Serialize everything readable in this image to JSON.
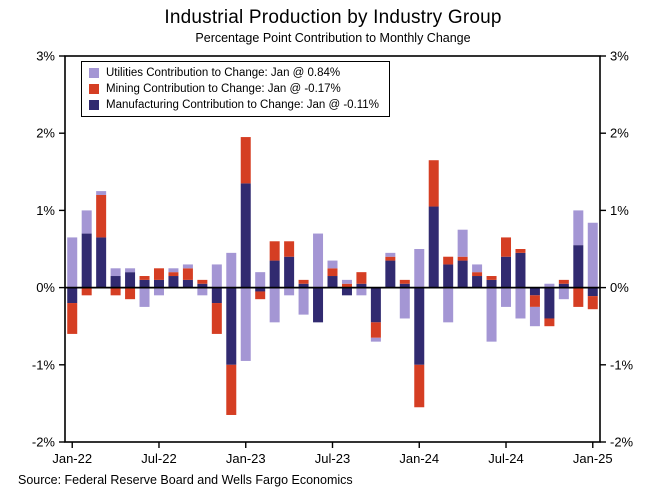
{
  "chart_data": {
    "type": "bar",
    "stacked": true,
    "title": "Industrial Production by Industry Group",
    "subtitle": "Percentage Point Contribution to Monthly Change",
    "source": "Source: Federal Reserve Board and Wells Fargo Economics",
    "ylim": [
      -2,
      3
    ],
    "yticks": [
      3,
      2,
      1,
      0,
      -1,
      -2
    ],
    "ytick_suffix": "%",
    "grid": false,
    "legend_position": "top-left-inside",
    "categories": [
      "Jan-22",
      "Feb-22",
      "Mar-22",
      "Apr-22",
      "May-22",
      "Jun-22",
      "Jul-22",
      "Aug-22",
      "Sep-22",
      "Oct-22",
      "Nov-22",
      "Dec-22",
      "Jan-23",
      "Feb-23",
      "Mar-23",
      "Apr-23",
      "May-23",
      "Jun-23",
      "Jul-23",
      "Aug-23",
      "Sep-23",
      "Oct-23",
      "Nov-23",
      "Dec-23",
      "Jan-24",
      "Feb-24",
      "Mar-24",
      "Apr-24",
      "May-24",
      "Jun-24",
      "Jul-24",
      "Aug-24",
      "Sep-24",
      "Oct-24",
      "Nov-24",
      "Dec-24",
      "Jan-25"
    ],
    "xticks": [
      {
        "i": 0,
        "label": "Jan-22"
      },
      {
        "i": 6,
        "label": "Jul-22"
      },
      {
        "i": 12,
        "label": "Jan-23"
      },
      {
        "i": 18,
        "label": "Jul-23"
      },
      {
        "i": 24,
        "label": "Jan-24"
      },
      {
        "i": 30,
        "label": "Jul-24"
      },
      {
        "i": 36,
        "label": "Jan-25"
      }
    ],
    "series": [
      {
        "id": "utilities",
        "name": "Utilities",
        "legend_label": "Utilities Contribution to Change: Jan @ 0.84%",
        "color": "#a496d4",
        "values": [
          0.65,
          0.3,
          0.05,
          0.1,
          0.05,
          -0.25,
          -0.1,
          0.05,
          0.05,
          -0.1,
          0.3,
          0.45,
          -0.95,
          0.2,
          -0.45,
          -0.1,
          -0.35,
          0.7,
          0.1,
          0.05,
          -0.1,
          -0.05,
          0.05,
          -0.4,
          0.5,
          0.0,
          -0.45,
          0.35,
          0.1,
          -0.7,
          -0.25,
          -0.4,
          -0.25,
          0.05,
          -0.15,
          0.45,
          0.84
        ]
      },
      {
        "id": "mining",
        "name": "Mining",
        "legend_label": "Mining Contribution to Change: Jan @ -0.17%",
        "color": "#d53e23",
        "values": [
          -0.4,
          -0.1,
          0.55,
          -0.1,
          -0.15,
          0.05,
          0.15,
          0.05,
          0.15,
          0.05,
          -0.4,
          -0.65,
          0.6,
          -0.1,
          0.25,
          0.2,
          0.05,
          0.0,
          0.1,
          0.05,
          0.15,
          -0.2,
          0.05,
          0.05,
          -0.55,
          0.6,
          0.1,
          0.05,
          0.05,
          0.05,
          0.25,
          0.05,
          -0.15,
          -0.1,
          0.05,
          -0.25,
          -0.17
        ]
      },
      {
        "id": "manufacturing",
        "name": "Manufacturing",
        "legend_label": "Manufacturing Contribution to Change: Jan @ -0.11%",
        "color": "#312a70",
        "values": [
          -0.2,
          0.7,
          0.65,
          0.15,
          0.2,
          0.1,
          0.1,
          0.15,
          0.1,
          0.05,
          -0.2,
          -1.0,
          1.35,
          -0.05,
          0.35,
          0.4,
          0.05,
          -0.45,
          0.15,
          -0.1,
          0.05,
          -0.45,
          0.35,
          0.05,
          -1.0,
          1.05,
          0.3,
          0.35,
          0.15,
          0.1,
          0.4,
          0.45,
          -0.1,
          -0.4,
          0.05,
          0.55,
          -0.11
        ]
      }
    ]
  }
}
